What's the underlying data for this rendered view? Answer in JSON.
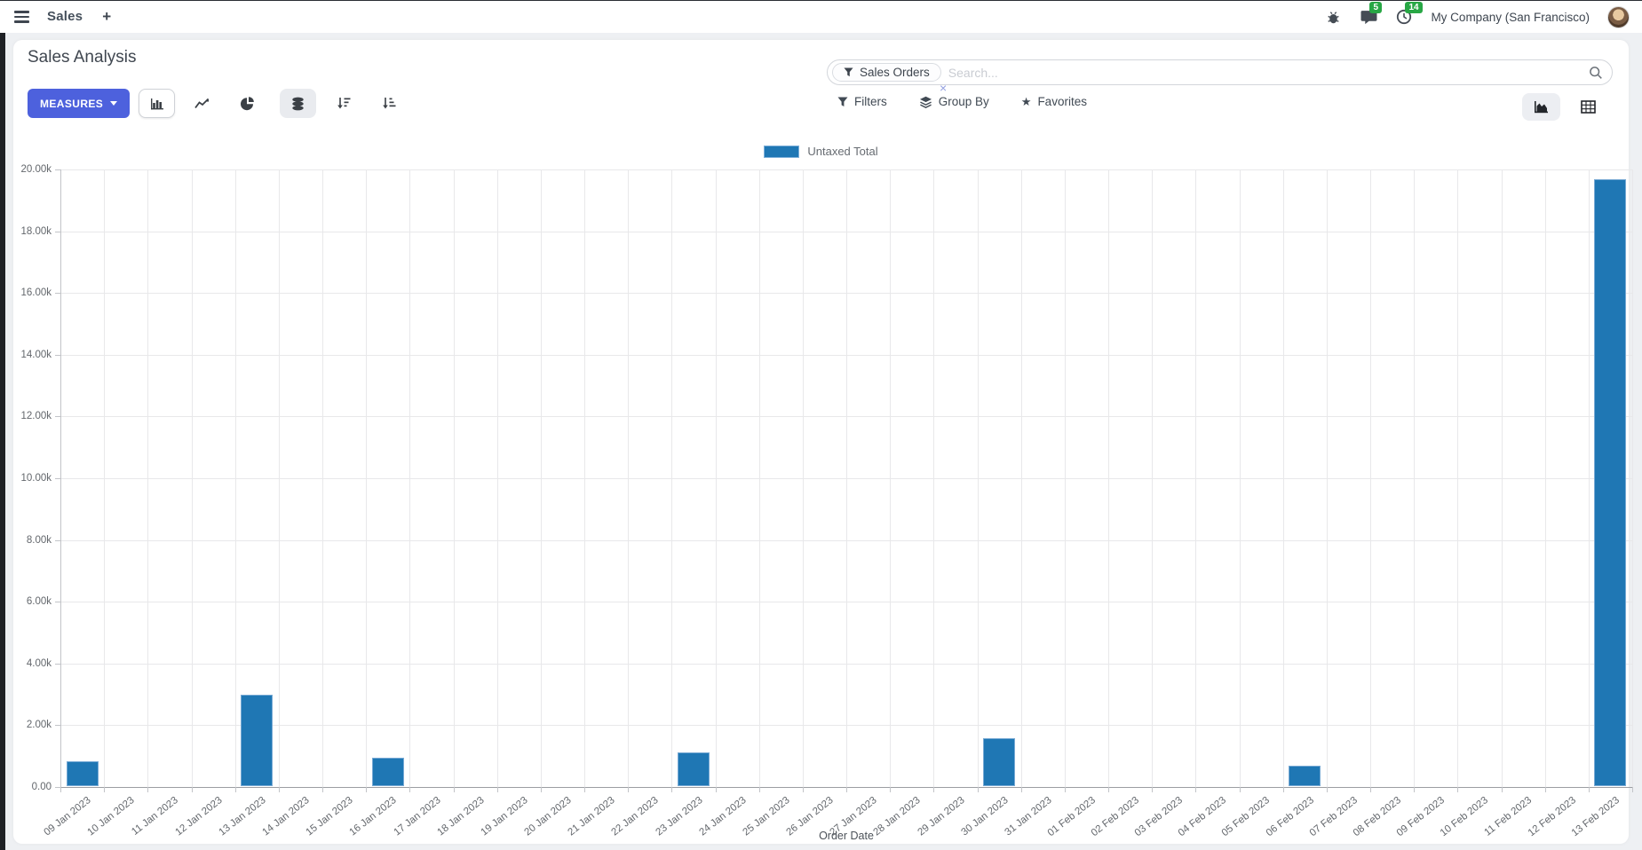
{
  "navbar": {
    "app_name": "Sales",
    "plus_label": "+",
    "messages_badge": "5",
    "activities_badge": "14",
    "company": "My Company (San Francisco)"
  },
  "control_panel": {
    "title": "Sales Analysis",
    "measures_label": "MEASURES",
    "search": {
      "facet_label": "Sales Orders",
      "facet_remove": "×",
      "placeholder": "Search..."
    },
    "filters_label": "Filters",
    "group_by_label": "Group By",
    "favorites_label": "Favorites"
  },
  "icons": {
    "menu-icon": "three-bars",
    "plus-icon": "+",
    "bug-icon": "bug",
    "messages-icon": "speech-bubble",
    "activities-icon": "clock",
    "search-icon": "magnifier",
    "filter-icon": "funnel",
    "group-by-icon": "layers",
    "favorites-icon": "★",
    "bar-chart-icon": "bar-chart",
    "line-chart-icon": "line-chart",
    "pie-chart-icon": "pie-chart",
    "stacked-icon": "database-stack",
    "sort-desc-icon": "arrow-down-bars",
    "sort-asc-icon": "arrow-up-bars",
    "graph-view-icon": "area-chart",
    "pivot-view-icon": "grid"
  },
  "colors": {
    "accent": "#4d61dd",
    "badge": "#28a745",
    "bar": "#1f77b4"
  },
  "chart_data": {
    "type": "bar",
    "title": "Sales Analysis",
    "xlabel": "Order Date",
    "ylabel": "",
    "ylim": [
      0,
      20000
    ],
    "ytick_step": 2000,
    "grid": true,
    "legend_position": "top",
    "categories": [
      "09 Jan 2023",
      "10 Jan 2023",
      "11 Jan 2023",
      "12 Jan 2023",
      "13 Jan 2023",
      "14 Jan 2023",
      "15 Jan 2023",
      "16 Jan 2023",
      "17 Jan 2023",
      "18 Jan 2023",
      "19 Jan 2023",
      "20 Jan 2023",
      "21 Jan 2023",
      "22 Jan 2023",
      "23 Jan 2023",
      "24 Jan 2023",
      "25 Jan 2023",
      "26 Jan 2023",
      "27 Jan 2023",
      "28 Jan 2023",
      "29 Jan 2023",
      "30 Jan 2023",
      "31 Jan 2023",
      "01 Feb 2023",
      "02 Feb 2023",
      "03 Feb 2023",
      "04 Feb 2023",
      "05 Feb 2023",
      "06 Feb 2023",
      "07 Feb 2023",
      "08 Feb 2023",
      "09 Feb 2023",
      "10 Feb 2023",
      "11 Feb 2023",
      "12 Feb 2023",
      "13 Feb 2023"
    ],
    "series": [
      {
        "name": "Untaxed Total",
        "color": "#1f77b4",
        "values": [
          800,
          0,
          0,
          0,
          2950,
          0,
          0,
          930,
          0,
          0,
          0,
          0,
          0,
          0,
          1080,
          0,
          0,
          0,
          0,
          0,
          0,
          1550,
          0,
          0,
          0,
          0,
          0,
          0,
          660,
          0,
          0,
          0,
          0,
          0,
          0,
          19650
        ]
      }
    ]
  }
}
